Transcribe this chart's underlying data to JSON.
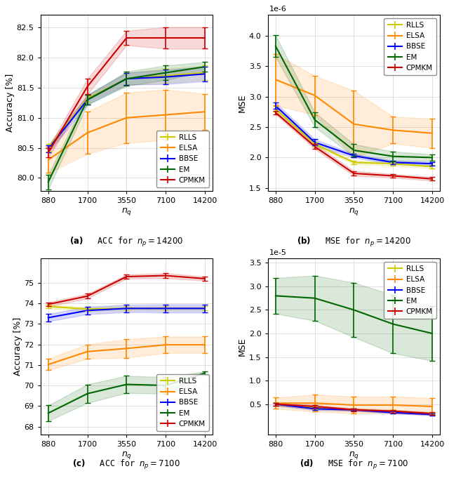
{
  "x_ticks": [
    880,
    1700,
    3550,
    7100,
    14200
  ],
  "x_labels": [
    "880",
    "1700",
    "3550",
    "7100",
    "14200"
  ],
  "methods": [
    "RLLS",
    "ELSA",
    "BBSE",
    "EM",
    "CPMKM"
  ],
  "colors": [
    "#cccc00",
    "#ff8800",
    "#0000ff",
    "#006600",
    "#cc0000"
  ],
  "fill_alpha": 0.15,
  "plot_a": {
    "ylabel": "Accuracy [%]",
    "xlabel": "$n_q$",
    "ylim": [
      79.78,
      82.72
    ],
    "yticks": [
      80.0,
      80.5,
      81.0,
      81.5,
      82.0,
      82.5
    ],
    "is_mse": false,
    "legend_loc": "lower right",
    "caption_bold": "(a)",
    "caption_rest": " ACC for $n_p = 14200$",
    "means": {
      "RLLS": [
        80.5,
        81.32,
        81.65,
        81.7,
        81.75
      ],
      "ELSA": [
        80.3,
        80.75,
        81.0,
        81.05,
        81.1
      ],
      "BBSE": [
        80.48,
        81.3,
        81.65,
        81.68,
        81.73
      ],
      "EM": [
        79.93,
        81.3,
        81.65,
        81.75,
        81.85
      ],
      "CPMKM": [
        80.42,
        81.52,
        82.33,
        82.33,
        82.33
      ]
    },
    "stds": {
      "RLLS": [
        0.06,
        0.05,
        0.1,
        0.12,
        0.12
      ],
      "ELSA": [
        0.22,
        0.35,
        0.42,
        0.42,
        0.3
      ],
      "BBSE": [
        0.06,
        0.08,
        0.1,
        0.12,
        0.12
      ],
      "EM": [
        0.12,
        0.08,
        0.12,
        0.12,
        0.08
      ],
      "CPMKM": [
        0.08,
        0.13,
        0.12,
        0.18,
        0.18
      ]
    }
  },
  "plot_b": {
    "ylabel": "MSE",
    "xlabel": "$n_q$",
    "ylim": [
      1.45e-06,
      4.35e-06
    ],
    "yticks": [
      1.5e-06,
      2e-06,
      2.5e-06,
      3e-06,
      3.5e-06,
      4e-06
    ],
    "is_mse": true,
    "scale": 1e-06,
    "scale_exp": 6,
    "legend_loc": "upper right",
    "caption_bold": "(b)",
    "caption_rest": " MSE for $n_p = 14200$",
    "means": {
      "RLLS": [
        2.8e-06,
        2.22e-06,
        1.92e-06,
        1.9e-06,
        1.85e-06
      ],
      "ELSA": [
        3.28e-06,
        3.02e-06,
        2.55e-06,
        2.45e-06,
        2.4e-06
      ],
      "BBSE": [
        2.85e-06,
        2.25e-06,
        2.03e-06,
        1.92e-06,
        1.9e-06
      ],
      "EM": [
        3.83e-06,
        2.62e-06,
        2.12e-06,
        2.02e-06,
        2e-06
      ],
      "CPMKM": [
        2.74e-06,
        2.18e-06,
        1.74e-06,
        1.7e-06,
        1.65e-06
      ]
    },
    "stds": {
      "RLLS": [
        5e-08,
        3e-08,
        3e-08,
        3e-08,
        3e-08
      ],
      "ELSA": [
        4.2e-07,
        3.2e-07,
        5.5e-07,
        2.2e-07,
        2.4e-07
      ],
      "BBSE": [
        5e-08,
        5e-08,
        3e-08,
        3e-08,
        3e-08
      ],
      "EM": [
        1.8e-07,
        1.2e-07,
        1e-07,
        8e-08,
        5e-08
      ],
      "CPMKM": [
        3e-08,
        4e-08,
        4e-08,
        3e-08,
        3e-08
      ]
    }
  },
  "plot_c": {
    "ylabel": "Accuracy [%]",
    "xlabel": "$n_q$",
    "ylim": [
      67.6,
      76.2
    ],
    "yticks": [
      68.0,
      69.0,
      70.0,
      71.0,
      72.0,
      73.0,
      74.0,
      75.0
    ],
    "is_mse": false,
    "legend_loc": "lower right",
    "caption_bold": "(c)",
    "caption_rest": " ACC for $n_p = 7100$",
    "means": {
      "RLLS": [
        73.85,
        73.72,
        73.75,
        73.75,
        73.75
      ],
      "ELSA": [
        71.02,
        71.65,
        71.8,
        71.98,
        71.98
      ],
      "BBSE": [
        73.3,
        73.65,
        73.75,
        73.75,
        73.75
      ],
      "EM": [
        68.65,
        69.6,
        70.05,
        70.0,
        70.6
      ],
      "CPMKM": [
        73.95,
        74.35,
        75.3,
        75.35,
        75.2
      ]
    },
    "stds": {
      "RLLS": [
        0.1,
        0.1,
        0.1,
        0.1,
        0.1
      ],
      "ELSA": [
        0.28,
        0.35,
        0.45,
        0.4,
        0.4
      ],
      "BBSE": [
        0.18,
        0.18,
        0.18,
        0.2,
        0.2
      ],
      "EM": [
        0.38,
        0.45,
        0.42,
        0.4,
        0.08
      ],
      "CPMKM": [
        0.1,
        0.12,
        0.1,
        0.12,
        0.1
      ]
    }
  },
  "plot_d": {
    "ylabel": "MSE",
    "xlabel": "$n_q$",
    "ylim": [
      -1.5e-06,
      3.6e-05
    ],
    "yticks": [
      5e-06,
      1e-05,
      1.5e-05,
      2e-05,
      2.5e-05,
      3e-05,
      3.5e-05
    ],
    "is_mse": true,
    "scale": 1e-05,
    "scale_exp": 5,
    "legend_loc": "upper right",
    "caption_bold": "(d)",
    "caption_rest": " MSE for $n_p = 7100$",
    "means": {
      "RLLS": [
        5e-06,
        4.2e-06,
        3.8e-06,
        3.5e-06,
        3e-06
      ],
      "ELSA": [
        5.2e-06,
        5.2e-06,
        4.8e-06,
        4.8e-06,
        4.5e-06
      ],
      "BBSE": [
        5e-06,
        4e-06,
        3.8e-06,
        3.2e-06,
        2.8e-06
      ],
      "EM": [
        2.8e-05,
        2.75e-05,
        2.5e-05,
        2.2e-05,
        2e-05
      ],
      "CPMKM": [
        5e-06,
        4.5e-06,
        3.8e-06,
        3.5e-06,
        3e-06
      ]
    },
    "stds": {
      "RLLS": [
        4e-07,
        3e-07,
        2e-07,
        2e-07,
        2e-07
      ],
      "ELSA": [
        1.2e-06,
        1.8e-06,
        1.8e-06,
        1.8e-06,
        1.8e-06
      ],
      "BBSE": [
        3e-07,
        3e-07,
        2e-07,
        2e-07,
        2e-07
      ],
      "EM": [
        3.8e-06,
        4.8e-06,
        5.8e-06,
        6.2e-06,
        5.8e-06
      ],
      "CPMKM": [
        3e-07,
        3e-07,
        3e-07,
        3e-07,
        3e-07
      ]
    }
  }
}
